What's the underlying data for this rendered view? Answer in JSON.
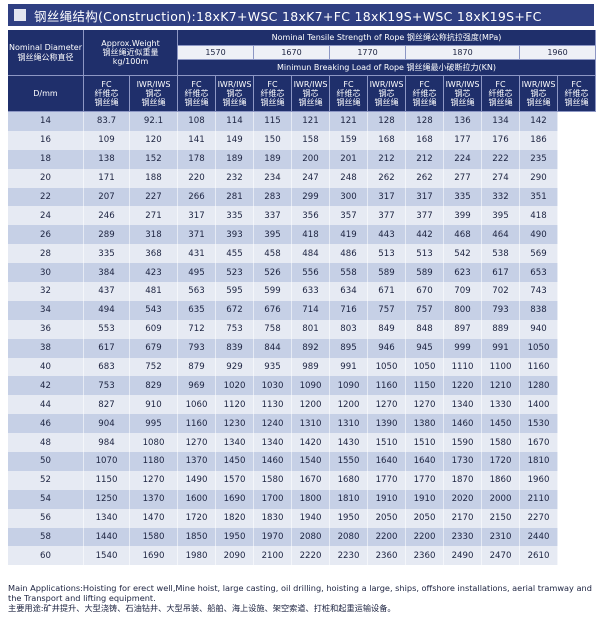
{
  "title": "钢丝绳结构(Construction):18xK7+WSC 18xK7+FC 18xK19S+WSC 18xK19S+FC",
  "header": {
    "nominal_diameter": "Nominal Diameter",
    "nominal_diameter_cn": "钢丝绳公称直径",
    "diameter_unit": "D/mm",
    "approx_weight": "Approx.Weight",
    "approx_weight_cn": "钢丝绳近似重量",
    "weight_unit": "kg/100m",
    "tensile_strength": "Nominal Tensile Strength of Rope 钢丝绳公称抗拉强度(MPa)",
    "strength_grades": [
      "1570",
      "1670",
      "1770",
      "1870",
      "1960"
    ],
    "breaking_load": "Minimun Breaking Load of Rope 钢丝绳最小破断拉力(KN)",
    "core_fc": "FC",
    "core_fc_cn": "纤维芯",
    "core_fc_cn2": "钢丝绳",
    "core_iwr": "IWR/IWS",
    "core_iwr_cn": "钢芯",
    "core_iwr_cn2": "钢丝绳"
  },
  "rows": [
    [
      "14",
      "83.7",
      "92.1",
      "108",
      "114",
      "115",
      "121",
      "121",
      "128",
      "128",
      "136",
      "134",
      "142"
    ],
    [
      "16",
      "109",
      "120",
      "141",
      "149",
      "150",
      "158",
      "159",
      "168",
      "168",
      "177",
      "176",
      "186"
    ],
    [
      "18",
      "138",
      "152",
      "178",
      "189",
      "189",
      "200",
      "201",
      "212",
      "212",
      "224",
      "222",
      "235"
    ],
    [
      "20",
      "171",
      "188",
      "220",
      "232",
      "234",
      "247",
      "248",
      "262",
      "262",
      "277",
      "274",
      "290"
    ],
    [
      "22",
      "207",
      "227",
      "266",
      "281",
      "283",
      "299",
      "300",
      "317",
      "317",
      "335",
      "332",
      "351"
    ],
    [
      "24",
      "246",
      "271",
      "317",
      "335",
      "337",
      "356",
      "357",
      "377",
      "377",
      "399",
      "395",
      "418"
    ],
    [
      "26",
      "289",
      "318",
      "371",
      "393",
      "395",
      "418",
      "419",
      "443",
      "442",
      "468",
      "464",
      "490"
    ],
    [
      "28",
      "335",
      "368",
      "431",
      "455",
      "458",
      "484",
      "486",
      "513",
      "513",
      "542",
      "538",
      "569"
    ],
    [
      "30",
      "384",
      "423",
      "495",
      "523",
      "526",
      "556",
      "558",
      "589",
      "589",
      "623",
      "617",
      "653"
    ],
    [
      "32",
      "437",
      "481",
      "563",
      "595",
      "599",
      "633",
      "634",
      "671",
      "670",
      "709",
      "702",
      "743"
    ],
    [
      "34",
      "494",
      "543",
      "635",
      "672",
      "676",
      "714",
      "716",
      "757",
      "757",
      "800",
      "793",
      "838"
    ],
    [
      "36",
      "553",
      "609",
      "712",
      "753",
      "758",
      "801",
      "803",
      "849",
      "848",
      "897",
      "889",
      "940"
    ],
    [
      "38",
      "617",
      "679",
      "793",
      "839",
      "844",
      "892",
      "895",
      "946",
      "945",
      "999",
      "991",
      "1050"
    ],
    [
      "40",
      "683",
      "752",
      "879",
      "929",
      "935",
      "989",
      "991",
      "1050",
      "1050",
      "1110",
      "1100",
      "1160"
    ],
    [
      "42",
      "753",
      "829",
      "969",
      "1020",
      "1030",
      "1090",
      "1090",
      "1160",
      "1150",
      "1220",
      "1210",
      "1280"
    ],
    [
      "44",
      "827",
      "910",
      "1060",
      "1120",
      "1130",
      "1200",
      "1200",
      "1270",
      "1270",
      "1340",
      "1330",
      "1400"
    ],
    [
      "46",
      "904",
      "995",
      "1160",
      "1230",
      "1240",
      "1310",
      "1310",
      "1390",
      "1380",
      "1460",
      "1450",
      "1530"
    ],
    [
      "48",
      "984",
      "1080",
      "1270",
      "1340",
      "1340",
      "1420",
      "1430",
      "1510",
      "1510",
      "1590",
      "1580",
      "1670"
    ],
    [
      "50",
      "1070",
      "1180",
      "1370",
      "1450",
      "1460",
      "1540",
      "1550",
      "1640",
      "1640",
      "1730",
      "1720",
      "1810"
    ],
    [
      "52",
      "1150",
      "1270",
      "1490",
      "1570",
      "1580",
      "1670",
      "1680",
      "1770",
      "1770",
      "1870",
      "1860",
      "1960"
    ],
    [
      "54",
      "1250",
      "1370",
      "1600",
      "1690",
      "1700",
      "1800",
      "1810",
      "1910",
      "1910",
      "2020",
      "2000",
      "2110"
    ],
    [
      "56",
      "1340",
      "1470",
      "1720",
      "1820",
      "1830",
      "1940",
      "1950",
      "2050",
      "2050",
      "2170",
      "2150",
      "2270"
    ],
    [
      "58",
      "1440",
      "1580",
      "1850",
      "1950",
      "1970",
      "2080",
      "2080",
      "2200",
      "2200",
      "2330",
      "2310",
      "2440"
    ],
    [
      "60",
      "1540",
      "1690",
      "1980",
      "2090",
      "2100",
      "2220",
      "2230",
      "2360",
      "2360",
      "2490",
      "2470",
      "2610"
    ]
  ],
  "notes": {
    "en": "Main Applications:Hoisting for erect well,Mine hoist, large casting, oil drilling, hoisting a large, ships, offshore installations, aerial tramway and the Transport and lifting equipment.",
    "cn": "主要用途:矿井提升、大型浇铸、石油钻井、大型吊装、船舶、海上设施、架空索道、打桩和起重运输设备。"
  },
  "colors": {
    "header_dark": "#1f2f6b",
    "title_bar": "#2f3f82",
    "row_dark": "#c6d0e6",
    "row_light": "#e6eaf3"
  }
}
